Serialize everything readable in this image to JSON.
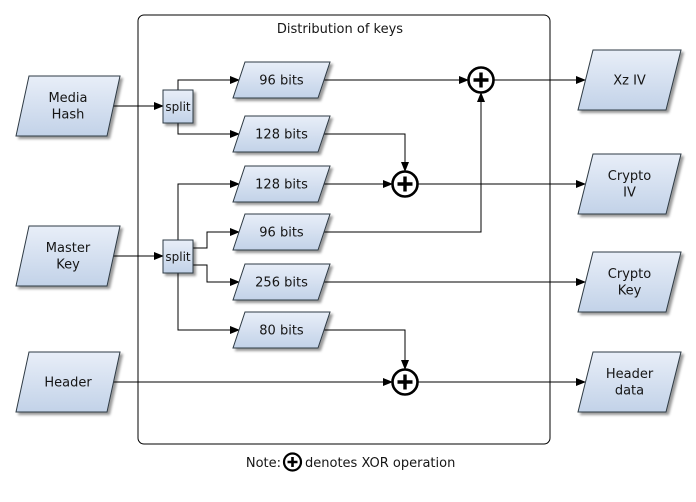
{
  "title": "Distribution of keys",
  "note": {
    "prefix": "Note:",
    "symbol": "circle-plus",
    "text": "denotes XOR operation"
  },
  "colors": {
    "node_fill_top": "#e8eef8",
    "node_fill_bottom": "#c2d2e8",
    "node_border": "#2f3a44",
    "line": "#000000",
    "container_border": "#000000",
    "canvas": "#ffffff",
    "text": "#151515"
  },
  "nodes": [
    {
      "id": "media-hash",
      "kind": "input",
      "shape": "parallelogram",
      "lines": [
        "Media",
        "Hash"
      ]
    },
    {
      "id": "master-key",
      "kind": "input",
      "shape": "parallelogram",
      "lines": [
        "Master",
        "Key"
      ]
    },
    {
      "id": "header",
      "kind": "input",
      "shape": "parallelogram",
      "lines": [
        "Header"
      ]
    },
    {
      "id": "split-1",
      "kind": "process",
      "shape": "rect",
      "lines": [
        "split"
      ]
    },
    {
      "id": "split-2",
      "kind": "process",
      "shape": "rect",
      "lines": [
        "split"
      ]
    },
    {
      "id": "seg-96-a",
      "kind": "segment",
      "shape": "parallelogram",
      "lines": [
        "96 bits"
      ]
    },
    {
      "id": "seg-128-a",
      "kind": "segment",
      "shape": "parallelogram",
      "lines": [
        "128 bits"
      ]
    },
    {
      "id": "seg-128-b",
      "kind": "segment",
      "shape": "parallelogram",
      "lines": [
        "128 bits"
      ]
    },
    {
      "id": "seg-96-b",
      "kind": "segment",
      "shape": "parallelogram",
      "lines": [
        "96 bits"
      ]
    },
    {
      "id": "seg-256",
      "kind": "segment",
      "shape": "parallelogram",
      "lines": [
        "256 bits"
      ]
    },
    {
      "id": "seg-80",
      "kind": "segment",
      "shape": "parallelogram",
      "lines": [
        "80 bits"
      ]
    },
    {
      "id": "xor-1",
      "kind": "operator",
      "shape": "xor",
      "lines": []
    },
    {
      "id": "xor-2",
      "kind": "operator",
      "shape": "xor",
      "lines": []
    },
    {
      "id": "xor-3",
      "kind": "operator",
      "shape": "xor",
      "lines": []
    },
    {
      "id": "xz-iv",
      "kind": "output",
      "shape": "parallelogram",
      "lines": [
        "Xz IV"
      ]
    },
    {
      "id": "crypto-iv",
      "kind": "output",
      "shape": "parallelogram",
      "lines": [
        "Crypto",
        "IV"
      ]
    },
    {
      "id": "crypto-key",
      "kind": "output",
      "shape": "parallelogram",
      "lines": [
        "Crypto",
        "Key"
      ]
    },
    {
      "id": "header-data",
      "kind": "output",
      "shape": "parallelogram",
      "lines": [
        "Header",
        "data"
      ]
    }
  ],
  "edges": [
    {
      "from": "media-hash",
      "to": "split-1"
    },
    {
      "from": "split-1",
      "to": "seg-96-a"
    },
    {
      "from": "split-1",
      "to": "seg-128-a"
    },
    {
      "from": "master-key",
      "to": "split-2"
    },
    {
      "from": "split-2",
      "to": "seg-128-b"
    },
    {
      "from": "split-2",
      "to": "seg-96-b"
    },
    {
      "from": "split-2",
      "to": "seg-256"
    },
    {
      "from": "split-2",
      "to": "seg-80"
    },
    {
      "from": "seg-96-a",
      "to": "xor-1"
    },
    {
      "from": "seg-96-b",
      "to": "xor-1"
    },
    {
      "from": "xor-1",
      "to": "xz-iv"
    },
    {
      "from": "seg-128-a",
      "to": "xor-2"
    },
    {
      "from": "seg-128-b",
      "to": "xor-2"
    },
    {
      "from": "xor-2",
      "to": "crypto-iv"
    },
    {
      "from": "seg-256",
      "to": "crypto-key"
    },
    {
      "from": "seg-80",
      "to": "xor-3"
    },
    {
      "from": "header",
      "to": "xor-3"
    },
    {
      "from": "xor-3",
      "to": "header-data"
    }
  ]
}
